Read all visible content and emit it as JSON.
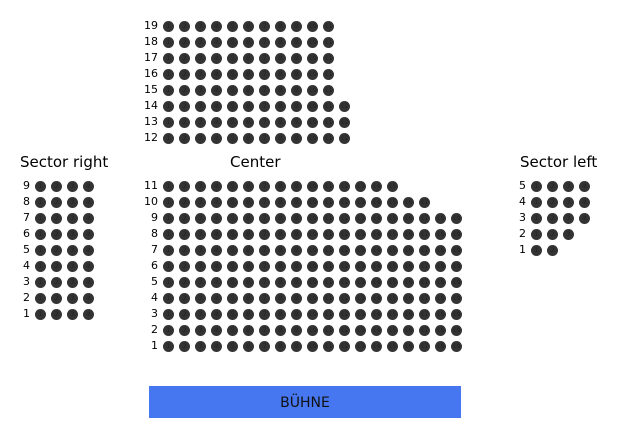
{
  "colors": {
    "seat": "#333333",
    "stage": "#4677f0"
  },
  "sections": [
    {
      "id": "balcony",
      "title": "",
      "rows": [
        {
          "label": "19",
          "seats": 11
        },
        {
          "label": "18",
          "seats": 11
        },
        {
          "label": "17",
          "seats": 11
        },
        {
          "label": "16",
          "seats": 11
        },
        {
          "label": "15",
          "seats": 11
        },
        {
          "label": "14",
          "seats": 12
        },
        {
          "label": "13",
          "seats": 12
        },
        {
          "label": "12",
          "seats": 12
        }
      ]
    },
    {
      "id": "center",
      "title": "Center",
      "rows": [
        {
          "label": "11",
          "seats": 15
        },
        {
          "label": "10",
          "seats": 17
        },
        {
          "label": "9",
          "seats": 19
        },
        {
          "label": "8",
          "seats": 19
        },
        {
          "label": "7",
          "seats": 19
        },
        {
          "label": "6",
          "seats": 19
        },
        {
          "label": "5",
          "seats": 19
        },
        {
          "label": "4",
          "seats": 19
        },
        {
          "label": "3",
          "seats": 19
        },
        {
          "label": "2",
          "seats": 19
        },
        {
          "label": "1",
          "seats": 19
        }
      ]
    },
    {
      "id": "sector-right",
      "title": "Sector right",
      "rows": [
        {
          "label": "9",
          "seats": 4
        },
        {
          "label": "8",
          "seats": 4
        },
        {
          "label": "7",
          "seats": 4
        },
        {
          "label": "6",
          "seats": 4
        },
        {
          "label": "5",
          "seats": 4
        },
        {
          "label": "4",
          "seats": 4
        },
        {
          "label": "3",
          "seats": 4
        },
        {
          "label": "2",
          "seats": 4
        },
        {
          "label": "1",
          "seats": 4
        }
      ]
    },
    {
      "id": "sector-left",
      "title": "Sector left",
      "rows": [
        {
          "label": "5",
          "seats": 4
        },
        {
          "label": "4",
          "seats": 4
        },
        {
          "label": "3",
          "seats": 4
        },
        {
          "label": "2",
          "seats": 3
        },
        {
          "label": "1",
          "seats": 2
        }
      ]
    }
  ],
  "stage": {
    "label": "BÜHNE"
  }
}
